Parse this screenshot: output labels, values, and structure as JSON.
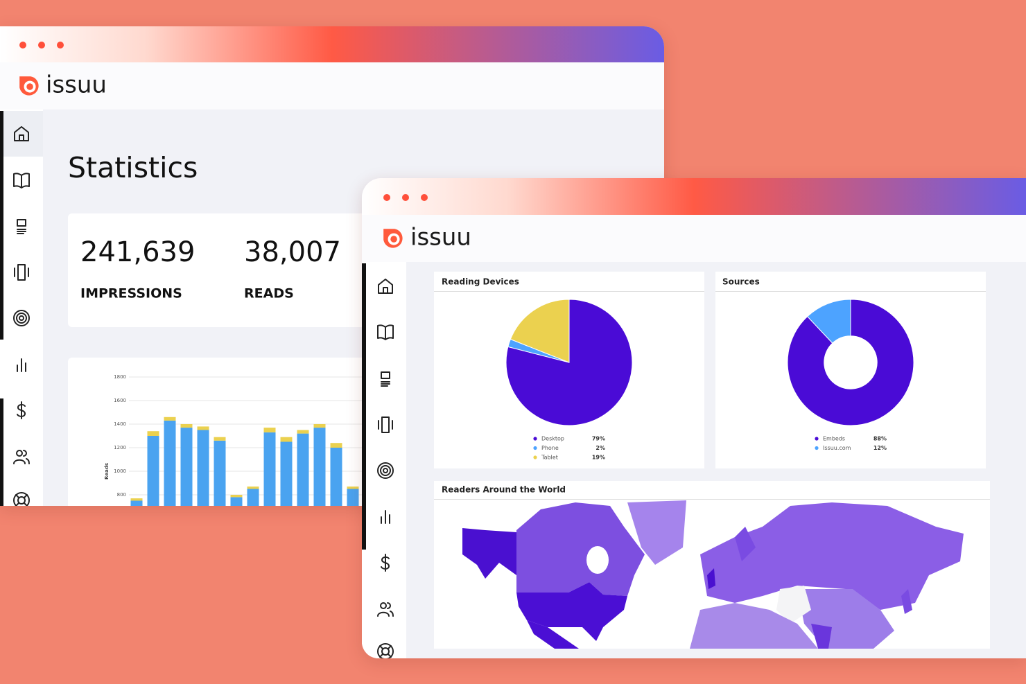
{
  "back_window": {
    "logo": "issuu",
    "title": "Statistics",
    "stats": [
      {
        "value": "241,639",
        "label": "IMPRESSIONS"
      },
      {
        "value": "38,007",
        "label": "READS"
      }
    ],
    "reads_chart": {
      "type": "bar",
      "stacked": true,
      "y_label": "Reads",
      "ylim": [
        0,
        1800
      ],
      "yticks": [
        800,
        1000,
        1200,
        1400,
        1600,
        1800
      ],
      "grid": true,
      "series": [
        {
          "color": "#4aa3f0",
          "values": [
            750,
            1300,
            1430,
            1370,
            1350,
            1260,
            780,
            850,
            1330,
            1250,
            1320,
            1370,
            1200,
            850
          ]
        },
        {
          "color": "#ebd14f",
          "values": [
            20,
            40,
            30,
            30,
            30,
            30,
            20,
            20,
            40,
            40,
            30,
            30,
            40,
            20
          ]
        }
      ]
    }
  },
  "front_window": {
    "logo": "issuu",
    "devices": {
      "type": "pie",
      "title": "Reading Devices",
      "categories": [
        "Desktop",
        "Phone",
        "Tablet"
      ],
      "values": [
        79,
        2,
        19
      ],
      "value_labels": [
        "79%",
        "2%",
        "19%"
      ],
      "colors": [
        "#4a0bd6",
        "#4da3ff",
        "#ebd14f"
      ]
    },
    "sources": {
      "type": "donut",
      "title": "Sources",
      "categories": [
        "Embeds",
        "Issuu.com"
      ],
      "values": [
        88,
        12
      ],
      "value_labels": [
        "88%",
        "12%"
      ],
      "colors": [
        "#4a0bd6",
        "#4da3ff"
      ]
    },
    "map": {
      "title": "Readers Around the World"
    }
  }
}
